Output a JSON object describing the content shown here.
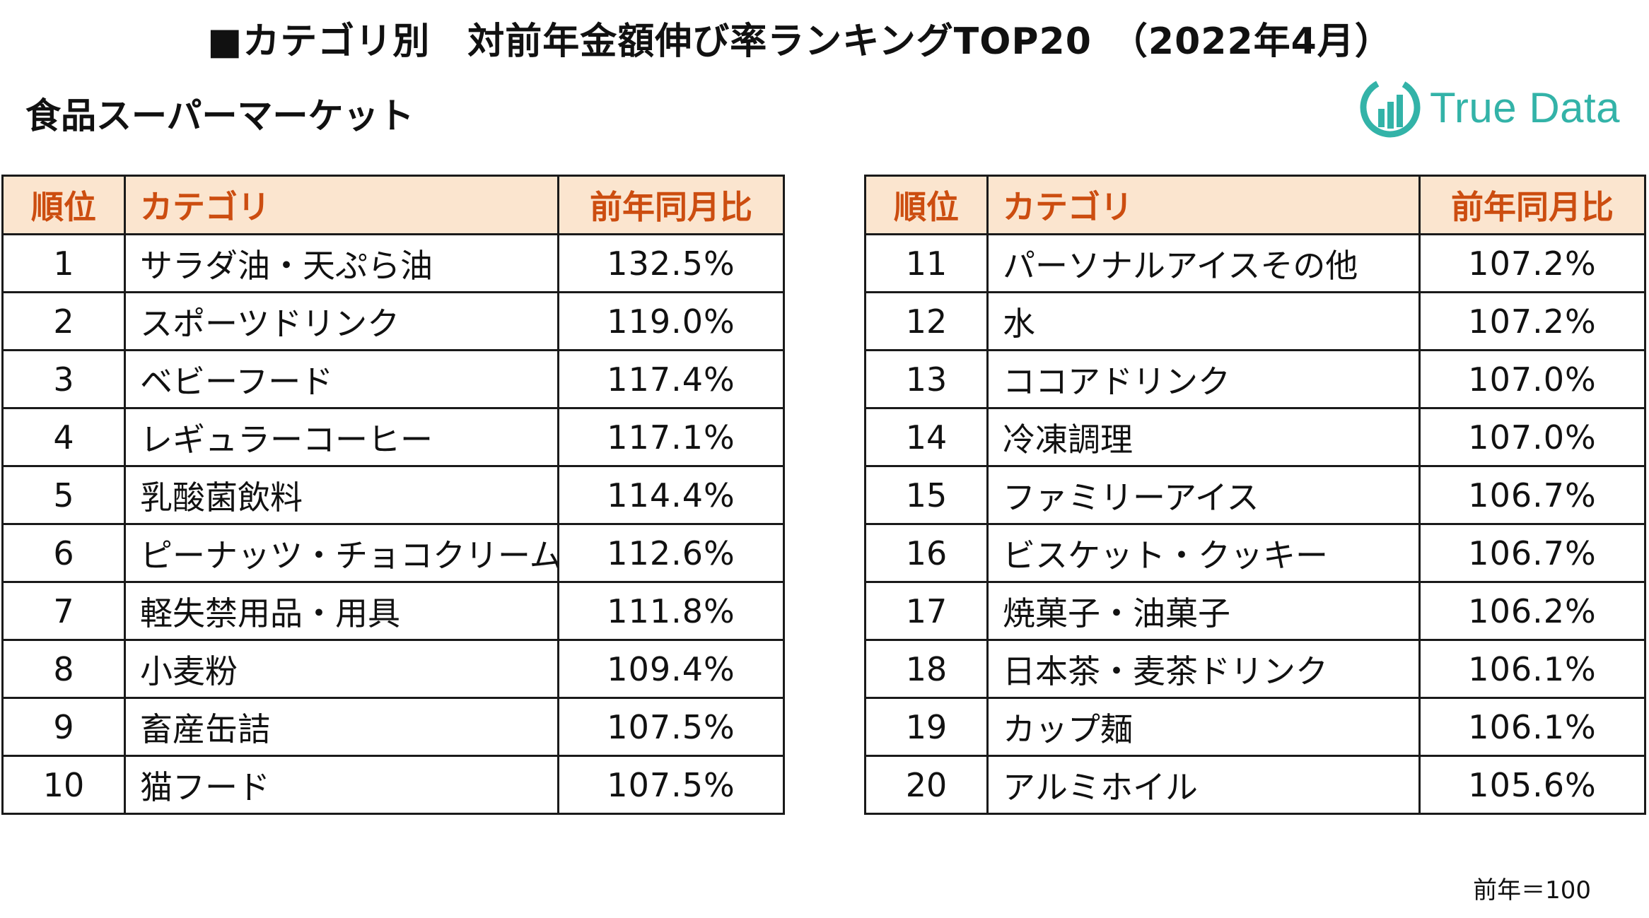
{
  "title": "■カテゴリ別　対前年金額伸び率ランキングTOP20　（2022年4月）",
  "subtitle": "食品スーパーマーケット",
  "logo": {
    "text": "True Data",
    "icon": "true-data-logo-icon",
    "color": "#33b3a8"
  },
  "colors": {
    "header_bg": "#fbe5cf",
    "header_text": "#cc4d10",
    "border": "#1a1a1a"
  },
  "table_left": {
    "headers": {
      "rank": "順位",
      "category": "カテゴリ",
      "ratio": "前年同月比"
    },
    "rows": [
      {
        "rank": "1",
        "category": "サラダ油・天ぷら油",
        "ratio": "132.5%"
      },
      {
        "rank": "2",
        "category": "スポーツドリンク",
        "ratio": "119.0%"
      },
      {
        "rank": "3",
        "category": "ベビーフード",
        "ratio": "117.4%"
      },
      {
        "rank": "4",
        "category": "レギュラーコーヒー",
        "ratio": "117.1%"
      },
      {
        "rank": "5",
        "category": "乳酸菌飲料",
        "ratio": "114.4%"
      },
      {
        "rank": "6",
        "category": "ピーナッツ・チョコクリーム",
        "ratio": "112.6%"
      },
      {
        "rank": "7",
        "category": "軽失禁用品・用具",
        "ratio": "111.8%"
      },
      {
        "rank": "8",
        "category": "小麦粉",
        "ratio": "109.4%"
      },
      {
        "rank": "9",
        "category": "畜産缶詰",
        "ratio": "107.5%"
      },
      {
        "rank": "10",
        "category": "猫フード",
        "ratio": "107.5%"
      }
    ]
  },
  "table_right": {
    "headers": {
      "rank": "順位",
      "category": "カテゴリ",
      "ratio": "前年同月比"
    },
    "rows": [
      {
        "rank": "11",
        "category": "パーソナルアイスその他",
        "ratio": "107.2%"
      },
      {
        "rank": "12",
        "category": "水",
        "ratio": "107.2%"
      },
      {
        "rank": "13",
        "category": "ココアドリンク",
        "ratio": "107.0%"
      },
      {
        "rank": "14",
        "category": "冷凍調理",
        "ratio": "107.0%"
      },
      {
        "rank": "15",
        "category": "ファミリーアイス",
        "ratio": "106.7%"
      },
      {
        "rank": "16",
        "category": "ビスケット・クッキー",
        "ratio": "106.7%"
      },
      {
        "rank": "17",
        "category": "焼菓子・油菓子",
        "ratio": "106.2%"
      },
      {
        "rank": "18",
        "category": "日本茶・麦茶ドリンク",
        "ratio": "106.1%"
      },
      {
        "rank": "19",
        "category": "カップ麺",
        "ratio": "106.1%"
      },
      {
        "rank": "20",
        "category": "アルミホイル",
        "ratio": "105.6%"
      }
    ]
  },
  "note": "前年＝100"
}
